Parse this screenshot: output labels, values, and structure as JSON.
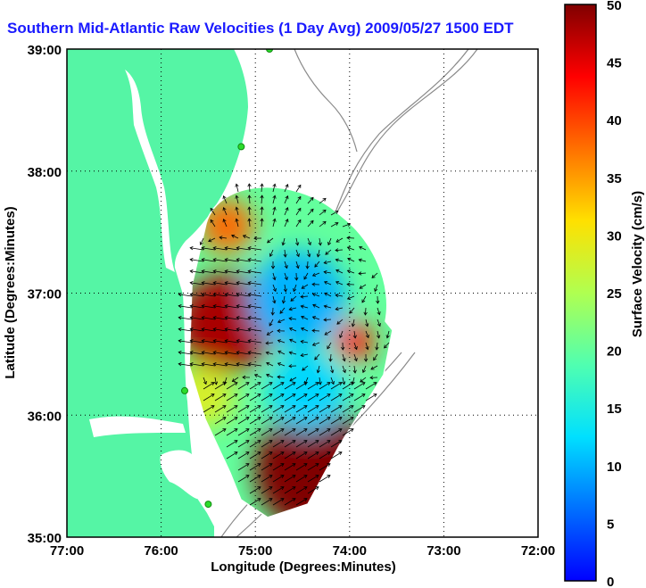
{
  "chart_data": {
    "type": "heatmap",
    "title": "Southern Mid-Atlantic Raw Velocities (1 Day Avg) 2009/05/27 1500 EDT",
    "xlabel": "Longitude (Degrees:Minutes)",
    "ylabel": "Latitude (Degrees:Minutes)",
    "colorbar_label": "Surface Velocity (cm/s)",
    "x_ticks": [
      "77:00",
      "76:00",
      "75:00",
      "74:00",
      "73:00",
      "72:00"
    ],
    "y_ticks": [
      "39:00",
      "38:00",
      "37:00",
      "36:00",
      "35:00"
    ],
    "colorbar_ticks": [
      "50",
      "45",
      "40",
      "35",
      "30",
      "25",
      "20",
      "15",
      "10",
      "5",
      "0"
    ],
    "xlim": [
      -77,
      -72
    ],
    "ylim": [
      35,
      39
    ],
    "clim": [
      0,
      50
    ],
    "grid": true,
    "colormap": "jet",
    "colors": {
      "land": "#55f5a5",
      "coast": "#ffffff",
      "bathymetry": "#8a8a8a",
      "title": "#1a1aff",
      "station": "#2bdc2b",
      "arrow": "#000000"
    },
    "regions": [
      {
        "lon": -75.3,
        "lat": 36.75,
        "speed": 48
      },
      {
        "lon": -74.35,
        "lat": 35.55,
        "speed": 50
      },
      {
        "lon": -74.55,
        "lat": 36.95,
        "speed": 10
      },
      {
        "lon": -74.45,
        "lat": 36.2,
        "speed": 12
      },
      {
        "lon": -75.3,
        "lat": 37.55,
        "speed": 38
      },
      {
        "lon": -75.55,
        "lat": 36.15,
        "speed": 28
      },
      {
        "lon": -73.95,
        "lat": 36.6,
        "speed": 42
      }
    ],
    "stations": [
      {
        "lon": -74.85,
        "lat": 39.0
      },
      {
        "lon": -75.15,
        "lat": 38.2
      },
      {
        "lon": -75.75,
        "lat": 36.2
      },
      {
        "lon": -75.5,
        "lat": 35.27
      }
    ]
  }
}
